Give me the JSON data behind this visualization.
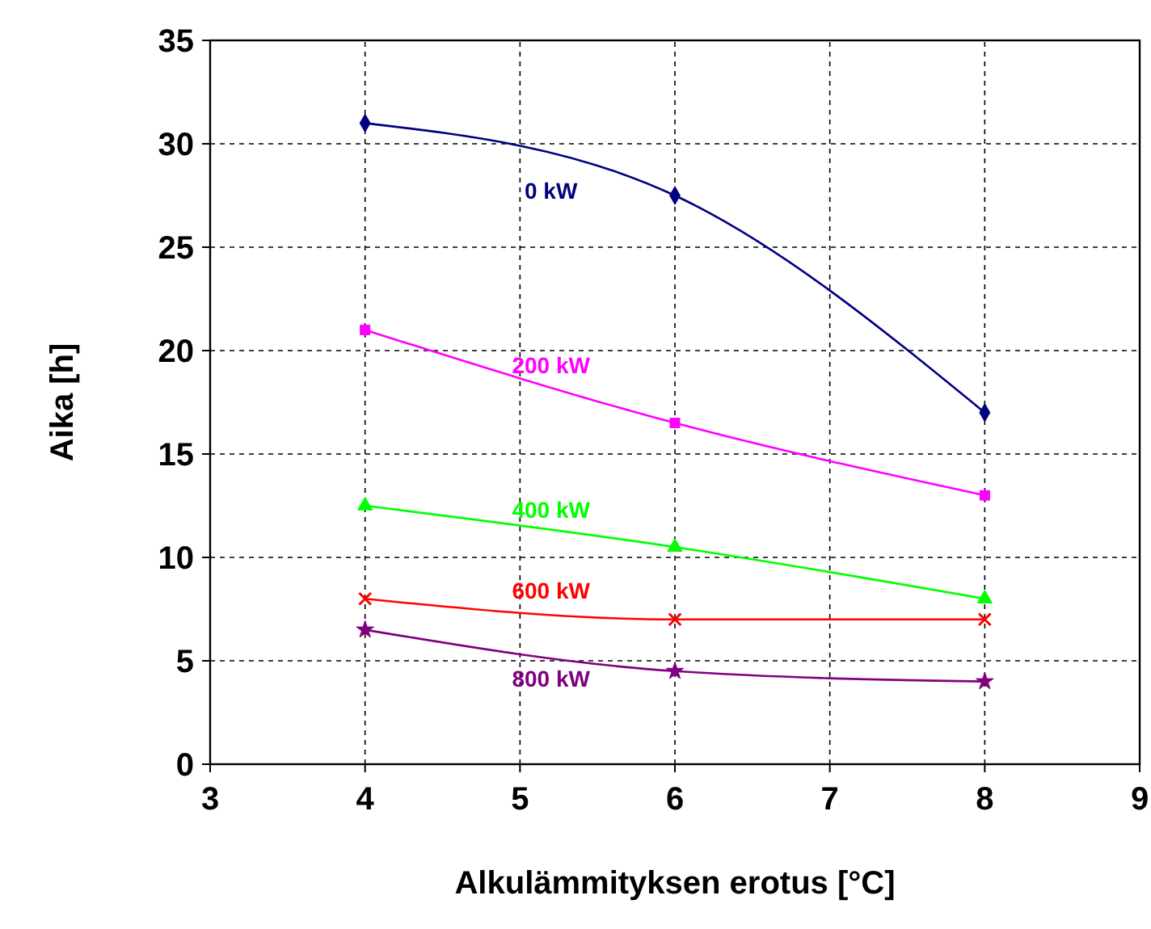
{
  "chart_data": {
    "type": "line",
    "xlabel": "Alkulämmityksen erotus [°C]",
    "ylabel": "Aika [h]",
    "x": [
      4,
      6,
      8
    ],
    "series": [
      {
        "name": "0 kW",
        "color": "#000080",
        "marker": "diamond",
        "values": [
          31,
          27.5,
          17
        ]
      },
      {
        "name": "200 kW",
        "color": "#ff00ff",
        "marker": "square",
        "values": [
          21,
          16.5,
          13
        ]
      },
      {
        "name": "400 kW",
        "color": "#00ff00",
        "marker": "triangle",
        "values": [
          12.5,
          10.5,
          8
        ]
      },
      {
        "name": "600 kW",
        "color": "#ff0000",
        "marker": "cross",
        "values": [
          8,
          7,
          7
        ]
      },
      {
        "name": "800 kW",
        "color": "#800080",
        "marker": "star",
        "values": [
          6.5,
          4.5,
          4
        ]
      }
    ],
    "xlim": [
      3,
      9
    ],
    "xticks": [
      3,
      4,
      5,
      6,
      7,
      8,
      9
    ],
    "ylim": [
      0,
      35
    ],
    "yticks": [
      0,
      5,
      10,
      15,
      20,
      25,
      30,
      35
    ],
    "grid": true,
    "legend": false
  }
}
